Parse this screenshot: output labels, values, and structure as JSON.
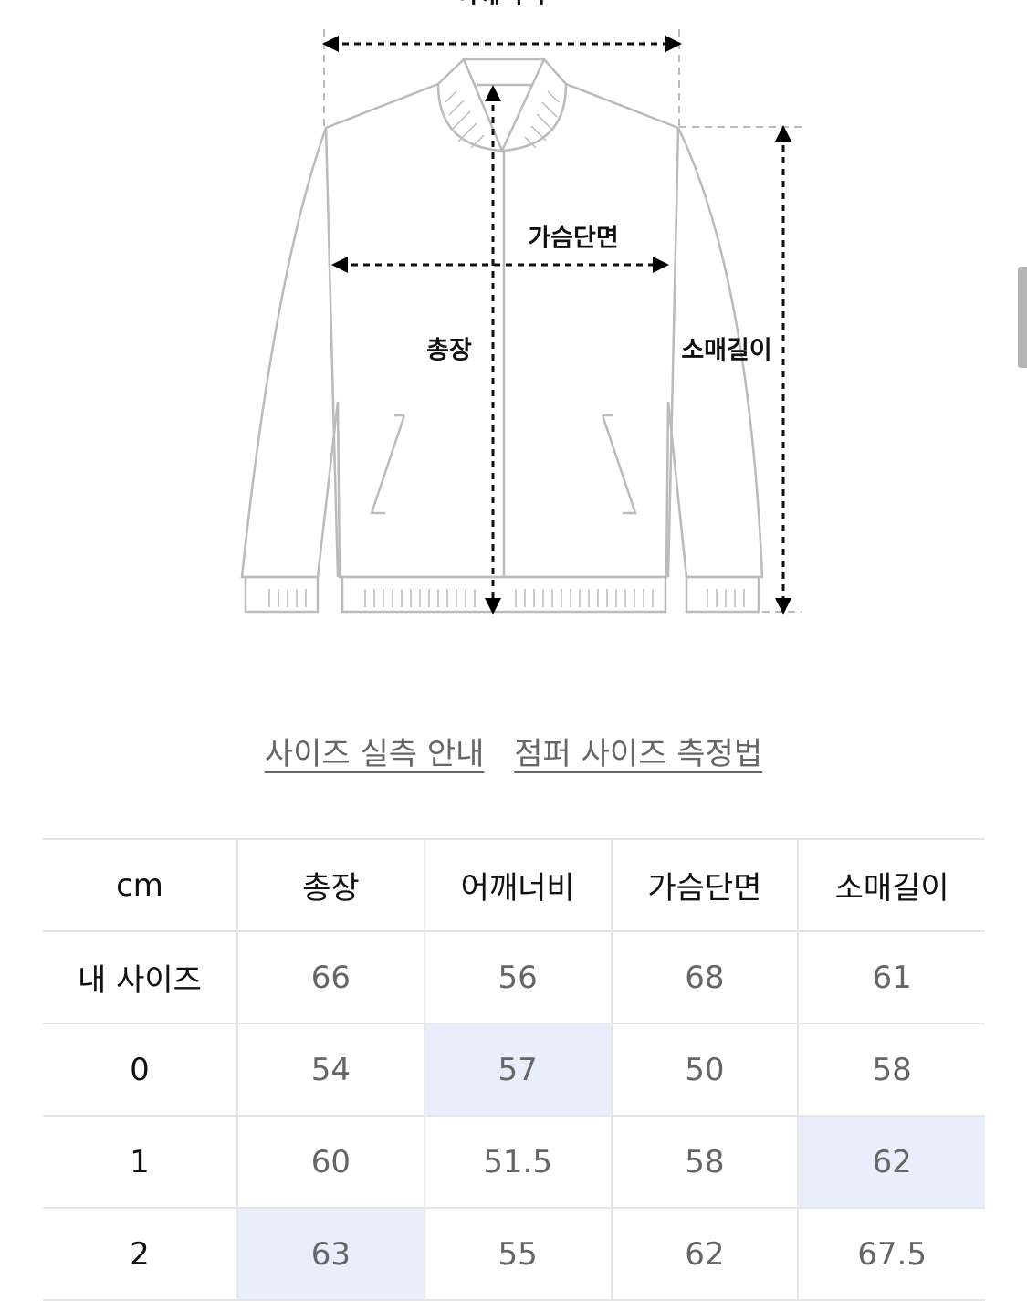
{
  "diagram": {
    "labels": {
      "shoulder": "어깨너비",
      "chest": "가슴단면",
      "length": "총장",
      "sleeve": "소매길이"
    }
  },
  "links": {
    "size_guide": "사이즈 실측 안내",
    "measure_method": "점퍼 사이즈 측정법"
  },
  "table": {
    "headers": [
      "cm",
      "총장",
      "어깨너비",
      "가슴단면",
      "소매길이"
    ],
    "rows": [
      {
        "label": "내 사이즈",
        "values": [
          "66",
          "56",
          "68",
          "61"
        ]
      },
      {
        "label": "0",
        "values": [
          "54",
          "57",
          "50",
          "58"
        ]
      },
      {
        "label": "1",
        "values": [
          "60",
          "51.5",
          "58",
          "62"
        ]
      },
      {
        "label": "2",
        "values": [
          "63",
          "55",
          "62",
          "67.5"
        ]
      }
    ],
    "highlight_color": "#e8eefc"
  }
}
